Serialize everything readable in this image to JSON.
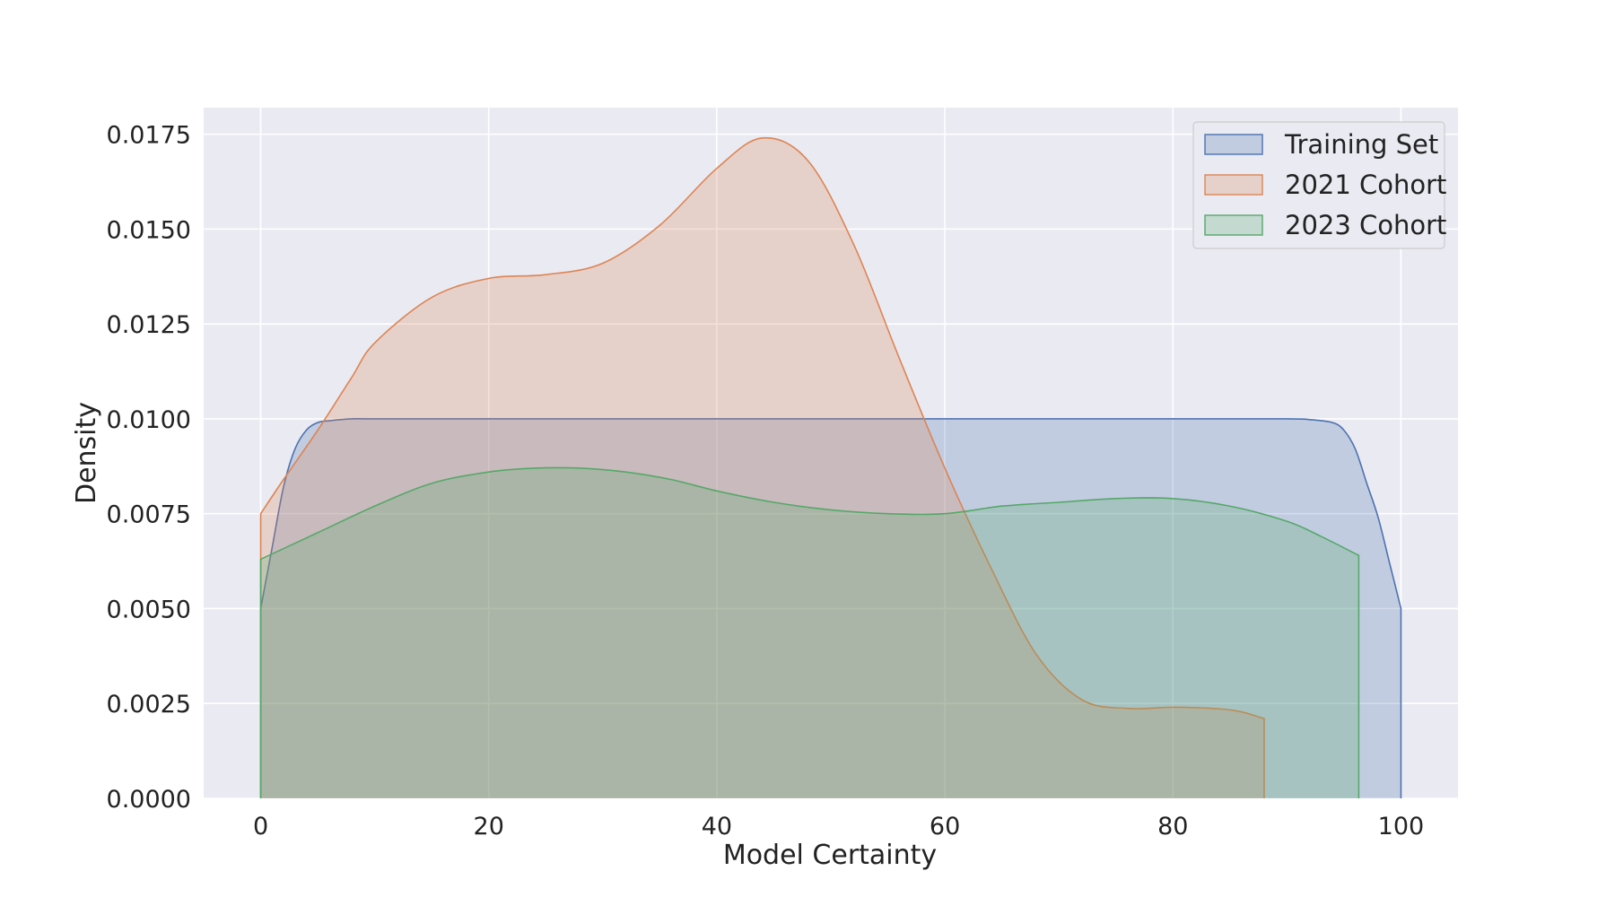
{
  "chart_data": {
    "type": "area",
    "title": "",
    "xlabel": "Model Certainty",
    "ylabel": "Density",
    "xlim": [
      -5,
      105
    ],
    "ylim": [
      0,
      0.0182
    ],
    "xticks": [
      0,
      20,
      40,
      60,
      80,
      100
    ],
    "xtick_labels": [
      "0",
      "20",
      "40",
      "60",
      "80",
      "100"
    ],
    "yticks": [
      0,
      0.0025,
      0.005,
      0.0075,
      0.01,
      0.0125,
      0.015,
      0.0175
    ],
    "ytick_labels": [
      "0.0000",
      "0.0025",
      "0.0050",
      "0.0075",
      "0.0100",
      "0.0125",
      "0.0150",
      "0.0175"
    ],
    "grid": true,
    "legend_position": "top-right",
    "background": "#eaeaf2",
    "series": [
      {
        "name": "Training Set",
        "color": "#4c72b0",
        "x": [
          0,
          1,
          2,
          3,
          4,
          5,
          6,
          8,
          10,
          20,
          40,
          60,
          80,
          90,
          92,
          94,
          95,
          96,
          97,
          98,
          99,
          100
        ],
        "y": [
          0.005,
          0.0066,
          0.0082,
          0.0092,
          0.0097,
          0.0099,
          0.00995,
          0.01,
          0.01,
          0.01,
          0.01,
          0.01,
          0.01,
          0.01,
          0.00998,
          0.0099,
          0.0097,
          0.0092,
          0.0083,
          0.0074,
          0.0062,
          0.005
        ]
      },
      {
        "name": "2021 Cohort",
        "color": "#dd8452",
        "x": [
          0,
          2,
          5,
          8,
          10,
          15,
          20,
          25,
          30,
          35,
          40,
          44,
          48,
          52,
          56,
          60,
          64,
          68,
          72,
          76,
          80,
          84,
          86,
          88
        ],
        "y": [
          0.0075,
          0.0084,
          0.0097,
          0.0111,
          0.012,
          0.0132,
          0.0137,
          0.0138,
          0.0141,
          0.0151,
          0.0166,
          0.0174,
          0.0168,
          0.0146,
          0.0116,
          0.0087,
          0.0061,
          0.0038,
          0.0026,
          0.00237,
          0.0024,
          0.00236,
          0.00228,
          0.0021
        ]
      },
      {
        "name": "2023 Cohort",
        "color": "#55a868",
        "x": [
          0,
          5,
          10,
          15,
          20,
          24,
          28,
          32,
          36,
          40,
          45,
          50,
          55,
          60,
          65,
          70,
          75,
          80,
          85,
          90,
          93,
          96.3
        ],
        "y": [
          0.0063,
          0.007,
          0.0077,
          0.0083,
          0.0086,
          0.0087,
          0.0087,
          0.0086,
          0.0084,
          0.0081,
          0.0078,
          0.0076,
          0.0075,
          0.0075,
          0.0077,
          0.0078,
          0.0079,
          0.0079,
          0.0077,
          0.0073,
          0.0069,
          0.0064
        ]
      }
    ]
  }
}
